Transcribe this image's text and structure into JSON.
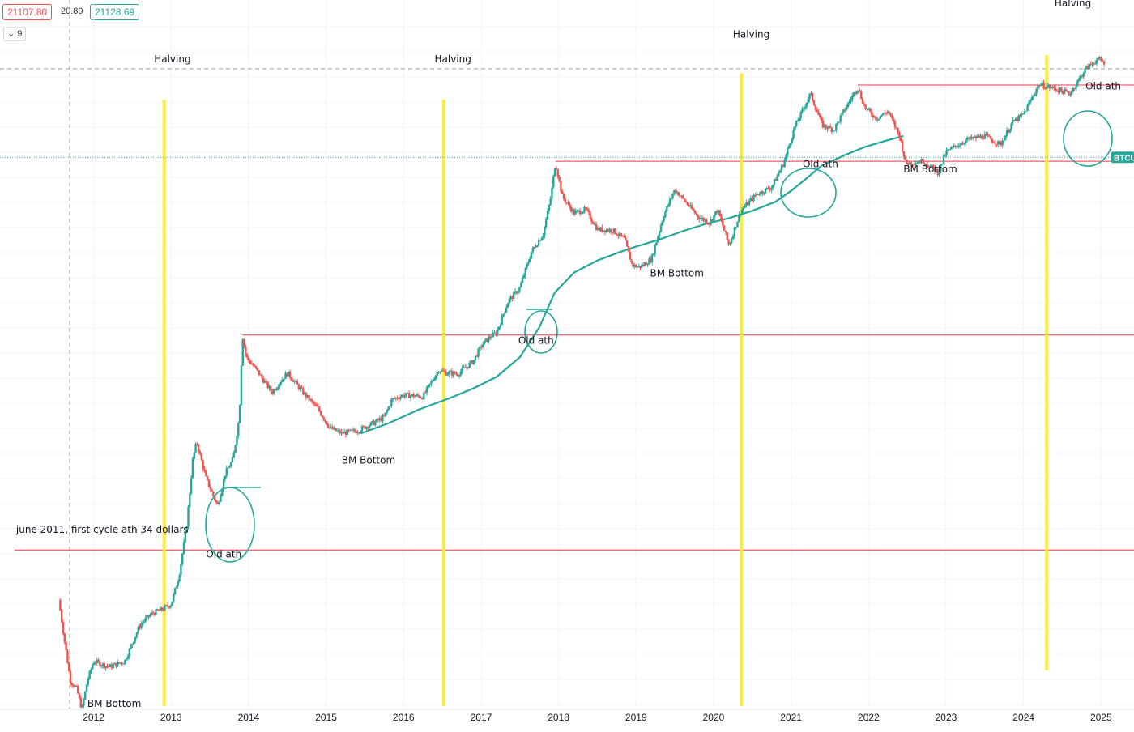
{
  "toolbar": {
    "sell_price": "21107.80",
    "spread": "20.89",
    "buy_price": "21128.69",
    "interval_icon": "chevron-down-icon",
    "interval_value": "9"
  },
  "colors": {
    "up": "#26a69a",
    "down": "#ef5350",
    "halving": "#ffeb3b",
    "ath_line": "#f23645",
    "ma": "#26a69a"
  },
  "price_tag": {
    "symbol": "BTCUSD"
  },
  "chart_data": {
    "type": "candlestick",
    "scale": "log",
    "x_ticks": [
      "2012",
      "2013",
      "2014",
      "2015",
      "2016",
      "2017",
      "2018",
      "2019",
      "2020",
      "2021",
      "2022",
      "2023",
      "2024",
      "2025"
    ],
    "x_tick_values": [
      2012,
      2013,
      2014,
      2015,
      2016,
      2017,
      2018,
      2019,
      2020,
      2021,
      2022,
      2023,
      2024,
      2025
    ],
    "xlim": [
      2010.98,
      2025.3
    ],
    "ylim": [
      2.5,
      250000
    ],
    "price_path": [
      [
        2011.55,
        15
      ],
      [
        2011.62,
        8
      ],
      [
        2011.7,
        4
      ],
      [
        2011.78,
        3.5
      ],
      [
        2011.85,
        2.5
      ],
      [
        2011.92,
        4
      ],
      [
        2012.0,
        5.5
      ],
      [
        2012.2,
        5
      ],
      [
        2012.4,
        5.5
      ],
      [
        2012.6,
        10
      ],
      [
        2012.75,
        12
      ],
      [
        2012.9,
        13
      ],
      [
        2013.0,
        14
      ],
      [
        2013.1,
        22
      ],
      [
        2013.2,
        50
      ],
      [
        2013.28,
        150
      ],
      [
        2013.33,
        200
      ],
      [
        2013.45,
        110
      ],
      [
        2013.6,
        70
      ],
      [
        2013.7,
        120
      ],
      [
        2013.8,
        150
      ],
      [
        2013.88,
        300
      ],
      [
        2013.92,
        1150
      ],
      [
        2013.97,
        800
      ],
      [
        2014.1,
        650
      ],
      [
        2014.3,
        450
      ],
      [
        2014.5,
        620
      ],
      [
        2014.7,
        450
      ],
      [
        2014.9,
        340
      ],
      [
        2015.05,
        250
      ],
      [
        2015.2,
        230
      ],
      [
        2015.4,
        240
      ],
      [
        2015.6,
        270
      ],
      [
        2015.75,
        300
      ],
      [
        2015.85,
        400
      ],
      [
        2016.0,
        430
      ],
      [
        2016.25,
        420
      ],
      [
        2016.45,
        650
      ],
      [
        2016.55,
        620
      ],
      [
        2016.7,
        610
      ],
      [
        2016.9,
        750
      ],
      [
        2017.0,
        960
      ],
      [
        2017.1,
        1100
      ],
      [
        2017.2,
        1200
      ],
      [
        2017.35,
        2000
      ],
      [
        2017.5,
        2500
      ],
      [
        2017.65,
        4500
      ],
      [
        2017.8,
        6000
      ],
      [
        2017.9,
        11000
      ],
      [
        2017.96,
        19500
      ],
      [
        2018.05,
        11000
      ],
      [
        2018.2,
        8500
      ],
      [
        2018.35,
        9000
      ],
      [
        2018.5,
        6500
      ],
      [
        2018.7,
        6400
      ],
      [
        2018.85,
        5500
      ],
      [
        2018.95,
        3600
      ],
      [
        2019.05,
        3500
      ],
      [
        2019.2,
        4000
      ],
      [
        2019.35,
        8000
      ],
      [
        2019.5,
        12500
      ],
      [
        2019.65,
        10000
      ],
      [
        2019.8,
        8000
      ],
      [
        2019.95,
        7200
      ],
      [
        2020.05,
        9000
      ],
      [
        2020.2,
        5000
      ],
      [
        2020.35,
        8800
      ],
      [
        2020.55,
        11500
      ],
      [
        2020.75,
        13000
      ],
      [
        2020.9,
        19000
      ],
      [
        2021.05,
        35000
      ],
      [
        2021.25,
        60000
      ],
      [
        2021.4,
        36000
      ],
      [
        2021.55,
        33000
      ],
      [
        2021.7,
        47000
      ],
      [
        2021.86,
        67000
      ],
      [
        2021.95,
        48000
      ],
      [
        2022.1,
        40000
      ],
      [
        2022.25,
        45000
      ],
      [
        2022.4,
        30000
      ],
      [
        2022.48,
        19000
      ],
      [
        2022.7,
        20000
      ],
      [
        2022.9,
        16500
      ],
      [
        2023.0,
        23000
      ],
      [
        2023.25,
        28000
      ],
      [
        2023.5,
        30000
      ],
      [
        2023.7,
        26000
      ],
      [
        2023.85,
        37000
      ],
      [
        2024.0,
        43000
      ],
      [
        2024.2,
        70000
      ],
      [
        2024.4,
        65000
      ],
      [
        2024.6,
        60000
      ],
      [
        2024.8,
        90000
      ],
      [
        2024.95,
        105000
      ],
      [
        2025.05,
        100000
      ]
    ],
    "ma_path": [
      [
        2015.45,
        230
      ],
      [
        2015.8,
        270
      ],
      [
        2016.2,
        340
      ],
      [
        2016.6,
        410
      ],
      [
        2016.9,
        480
      ],
      [
        2017.2,
        580
      ],
      [
        2017.5,
        800
      ],
      [
        2017.75,
        1300
      ],
      [
        2017.95,
        2300
      ],
      [
        2018.2,
        3200
      ],
      [
        2018.5,
        3900
      ],
      [
        2018.8,
        4500
      ],
      [
        2019.0,
        4900
      ],
      [
        2019.3,
        5500
      ],
      [
        2019.6,
        6300
      ],
      [
        2019.9,
        7100
      ],
      [
        2020.2,
        7800
      ],
      [
        2020.5,
        8800
      ],
      [
        2020.8,
        10200
      ],
      [
        2021.0,
        12200
      ],
      [
        2021.2,
        15000
      ],
      [
        2021.4,
        18500
      ],
      [
        2021.7,
        22000
      ],
      [
        2021.95,
        25000
      ],
      [
        2022.2,
        27500
      ],
      [
        2022.45,
        30000
      ]
    ],
    "ath_levels": [
      {
        "price": 34,
        "x_start": 2010.98
      },
      {
        "price": 1150,
        "x_start": 2013.92
      },
      {
        "price": 19800,
        "x_start": 2017.96
      },
      {
        "price": 69000,
        "x_start": 2021.86
      }
    ],
    "current_price": 21128.69,
    "halvings": [
      2012.91,
      2016.52,
      2020.36,
      2024.3
    ],
    "annotations": [
      {
        "text": "Halving",
        "x": 2012.78,
        "price": 100000
      },
      {
        "text": "Halving",
        "x": 2016.4,
        "price": 100000
      },
      {
        "text": "Halving",
        "x": 2020.25,
        "price": 150000
      },
      {
        "text": "Halving",
        "x": 2024.4,
        "price": 250000
      },
      {
        "text": "BM Bottom",
        "x": 2011.92,
        "price": 2.6
      },
      {
        "text": "BM Bottom",
        "x": 2015.2,
        "price": 140
      },
      {
        "text": "BM Bottom",
        "x": 2019.18,
        "price": 3000
      },
      {
        "text": "BM Bottom",
        "x": 2022.45,
        "price": 16500
      },
      {
        "text": "Old ath",
        "x": 2013.45,
        "price": 30
      },
      {
        "text": "Old ath",
        "x": 2017.48,
        "price": 1000
      },
      {
        "text": "Old ath",
        "x": 2021.15,
        "price": 18000
      },
      {
        "text": "Old ath",
        "x": 2024.8,
        "price": 64000
      },
      {
        "text": "june 2011, first cycle ath 34 dollars",
        "x": 2011.0,
        "price": 45
      }
    ]
  }
}
